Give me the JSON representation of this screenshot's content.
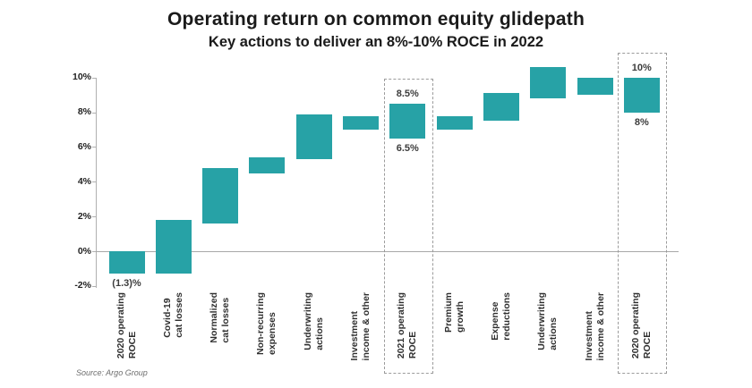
{
  "chart_data": {
    "type": "bar",
    "subtype": "waterfall-glidepath",
    "title": "Operating return on common equity glidepath",
    "subtitle": "Key actions to deliver an 8%-10% ROCE in 2022",
    "source": "Source: Argo Group",
    "xlabel": "",
    "ylabel": "",
    "ylim": [
      -2,
      10
    ],
    "grid": "zero-line-only",
    "legend": "none",
    "yticks": [
      {
        "v": 10,
        "label": "10%"
      },
      {
        "v": 8,
        "label": "8%"
      },
      {
        "v": 6,
        "label": "6%"
      },
      {
        "v": 4,
        "label": "4%"
      },
      {
        "v": 2,
        "label": "2%"
      },
      {
        "v": 0,
        "label": "0%"
      },
      {
        "v": -2,
        "label": "-2%"
      }
    ],
    "bars": [
      {
        "category": [
          "2020 operating",
          "ROCE"
        ],
        "start": 0,
        "end": -1.3,
        "label_below": "(1.3)%",
        "highlighted": false
      },
      {
        "category": [
          "Covid-19",
          "cat losses"
        ],
        "start": -1.3,
        "end": 1.8,
        "highlighted": false
      },
      {
        "category": [
          "Normalized",
          "cat losses"
        ],
        "start": 1.6,
        "end": 4.8,
        "highlighted": false
      },
      {
        "category": [
          "Non-recurring",
          "expenses"
        ],
        "start": 4.5,
        "end": 5.4,
        "highlighted": false
      },
      {
        "category": [
          "Underwriting",
          "actions"
        ],
        "start": 5.3,
        "end": 7.9,
        "highlighted": false
      },
      {
        "category": [
          "Investment",
          "income & other"
        ],
        "start": 7.0,
        "end": 7.8,
        "highlighted": false
      },
      {
        "category": [
          "2021 operating",
          "ROCE"
        ],
        "start": 6.5,
        "end": 8.5,
        "label_above": "8.5%",
        "label_below": "6.5%",
        "highlighted": true
      },
      {
        "category": [
          "Premium",
          "growth"
        ],
        "start": 7.0,
        "end": 7.8,
        "highlighted": false
      },
      {
        "category": [
          "Expense",
          "reductions"
        ],
        "start": 7.5,
        "end": 9.1,
        "highlighted": false
      },
      {
        "category": [
          "Underwriting",
          "actions"
        ],
        "start": 8.8,
        "end": 10.6,
        "highlighted": false
      },
      {
        "category": [
          "Investment",
          "income & other"
        ],
        "start": 9.0,
        "end": 10.0,
        "highlighted": false
      },
      {
        "category": [
          "2020 operating",
          "ROCE"
        ],
        "start": 8.0,
        "end": 10.0,
        "label_above": "10%",
        "label_below": "8%",
        "highlighted": true
      }
    ]
  },
  "colors": {
    "bar": "#27a2a6",
    "axis_line": "#b0b0b0",
    "zero_line": "#a8a8a8",
    "title_text": "#1a1a1a",
    "axis_tick_text": "#222222",
    "category_text": "#2e2e2e",
    "annotation_text": "#3c3c3c",
    "highlight_box": "#9b9b9b",
    "source_text": "#6e6e6e"
  }
}
